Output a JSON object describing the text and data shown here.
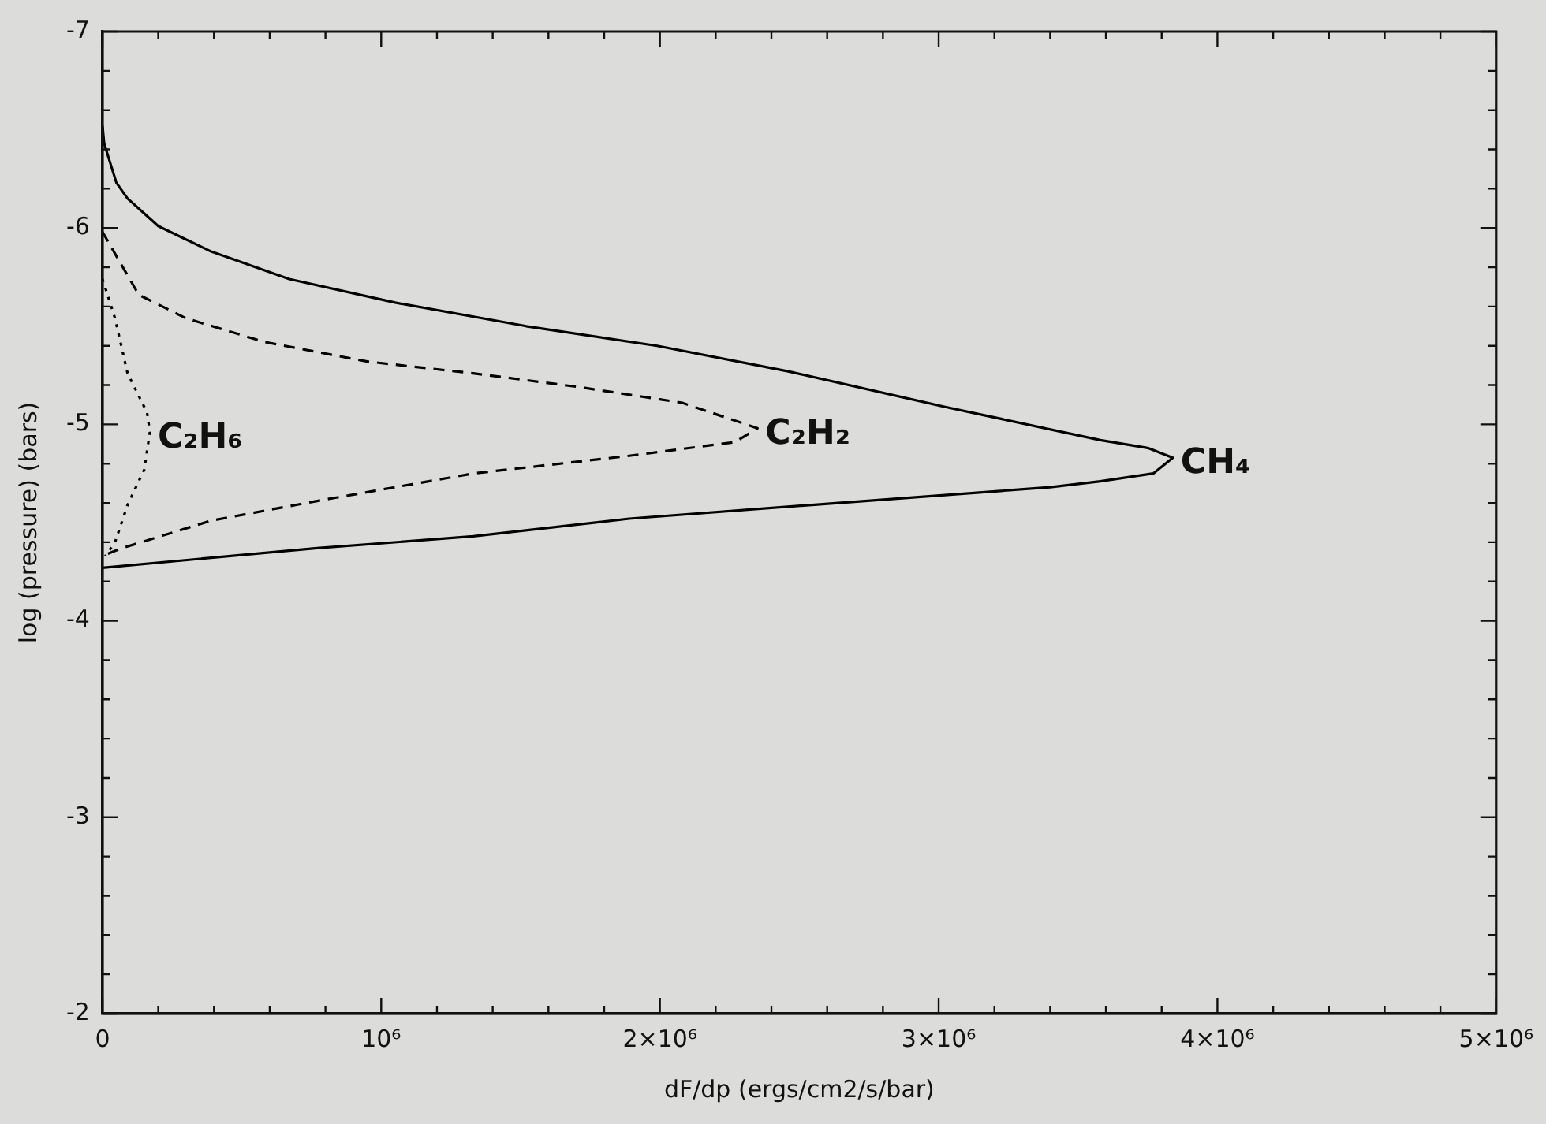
{
  "chart_data": {
    "type": "line",
    "xlabel": "dF/dp (ergs/cm2/s/bar)",
    "ylabel": "log (pressure) (bars)",
    "xlim": [
      0,
      5000000
    ],
    "ylim": [
      -2,
      -7
    ],
    "xticks": [
      0,
      {
        "value": 200000,
        "label": null
      },
      {
        "value": 400000,
        "label": null
      },
      {
        "value": 600000,
        "label": null
      },
      {
        "value": 800000,
        "label": null
      },
      {
        "value": 1000000,
        "label": "10⁶"
      },
      {
        "value": 1200000,
        "label": null
      },
      {
        "value": 1400000,
        "label": null
      },
      {
        "value": 1600000,
        "label": null
      },
      {
        "value": 1800000,
        "label": null
      },
      {
        "value": 2000000,
        "label": "2×10⁶"
      },
      {
        "value": 2200000,
        "label": null
      },
      {
        "value": 2400000,
        "label": null
      },
      {
        "value": 2600000,
        "label": null
      },
      {
        "value": 2800000,
        "label": null
      },
      {
        "value": 3000000,
        "label": "3×10⁶"
      },
      {
        "value": 3200000,
        "label": null
      },
      {
        "value": 3400000,
        "label": null
      },
      {
        "value": 3600000,
        "label": null
      },
      {
        "value": 3800000,
        "label": null
      },
      {
        "value": 4000000,
        "label": "4×10⁶"
      },
      {
        "value": 4200000,
        "label": null
      },
      {
        "value": 4400000,
        "label": null
      },
      {
        "value": 4600000,
        "label": null
      },
      {
        "value": 4800000,
        "label": null
      },
      {
        "value": 5000000,
        "label": "5×10⁶"
      }
    ],
    "yticks": [
      -7,
      {
        "value": -6.8,
        "label": null
      },
      {
        "value": -6.6,
        "label": null
      },
      {
        "value": -6.4,
        "label": null
      },
      {
        "value": -6.2,
        "label": null
      },
      -6,
      {
        "value": -5.8,
        "label": null
      },
      {
        "value": -5.6,
        "label": null
      },
      {
        "value": -5.4,
        "label": null
      },
      {
        "value": -5.2,
        "label": null
      },
      -5,
      {
        "value": -4.8,
        "label": null
      },
      {
        "value": -4.6,
        "label": null
      },
      {
        "value": -4.4,
        "label": null
      },
      {
        "value": -4.2,
        "label": null
      },
      -4,
      {
        "value": -3.8,
        "label": null
      },
      {
        "value": -3.6,
        "label": null
      },
      {
        "value": -3.4,
        "label": null
      },
      {
        "value": -3.2,
        "label": null
      },
      -3,
      {
        "value": -2.8,
        "label": null
      },
      {
        "value": -2.6,
        "label": null
      },
      {
        "value": -2.4,
        "label": null
      },
      {
        "value": -2.2,
        "label": null
      },
      -2
    ],
    "grid": false,
    "legend": false,
    "marker": "none",
    "series": [
      {
        "name": "CH₄",
        "color": "#000000",
        "line_style": "solid",
        "x": [
          0,
          6000,
          50000,
          90000,
          200000,
          390000,
          670000,
          1050000,
          1520000,
          1990000,
          2460000,
          3020000,
          3580000,
          3750000,
          3840000,
          3770000,
          3580000,
          3400000,
          2640000,
          1890000,
          1330000,
          770000,
          0
        ],
        "values": [
          -6.52,
          -6.43,
          -6.23,
          -6.15,
          -6.01,
          -5.88,
          -5.74,
          -5.62,
          -5.5,
          -5.4,
          -5.27,
          -5.09,
          -4.92,
          -4.88,
          -4.83,
          -4.75,
          -4.71,
          -4.68,
          -4.6,
          -4.52,
          -4.43,
          -4.37,
          -4.27
        ]
      },
      {
        "name": "C₂H₂",
        "color": "#000000",
        "line_style": "dashed",
        "x": [
          0,
          130000,
          300000,
          580000,
          950000,
          1330000,
          1710000,
          2080000,
          2350000,
          2270000,
          1890000,
          1330000,
          770000,
          390000,
          70000,
          0
        ],
        "values": [
          -5.98,
          -5.66,
          -5.54,
          -5.42,
          -5.32,
          -5.26,
          -5.19,
          -5.11,
          -4.98,
          -4.91,
          -4.84,
          -4.75,
          -4.61,
          -4.51,
          -4.37,
          -4.33
        ]
      },
      {
        "name": "C₂H₆",
        "color": "#000000",
        "line_style": "dotted",
        "x": [
          0,
          45000,
          90000,
          160000,
          170000,
          150000,
          90000,
          45000,
          10000
        ],
        "values": [
          -5.74,
          -5.54,
          -5.26,
          -5.06,
          -4.96,
          -4.77,
          -4.59,
          -4.4,
          -4.33
        ]
      }
    ]
  }
}
